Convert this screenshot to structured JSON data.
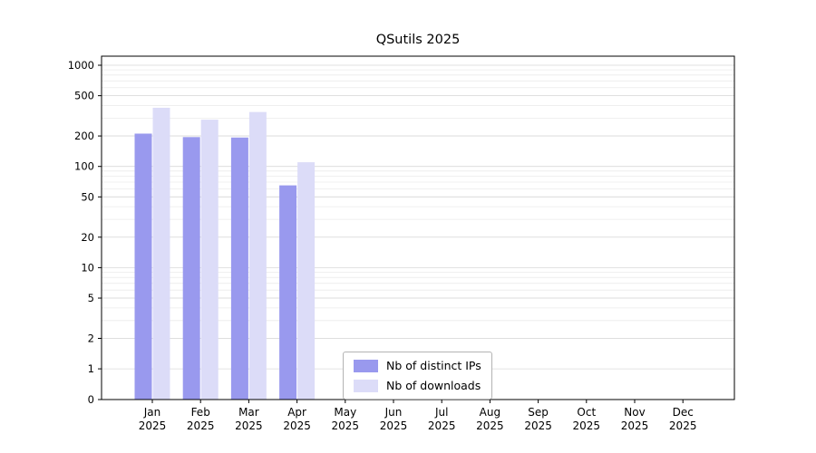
{
  "chart_data": {
    "type": "bar",
    "title": "QSutils 2025",
    "categories": [
      "Jan",
      "Feb",
      "Mar",
      "Apr",
      "May",
      "Jun",
      "Jul",
      "Aug",
      "Sep",
      "Oct",
      "Nov",
      "Dec"
    ],
    "year": "2025",
    "series": [
      {
        "name": "Nb of distinct IPs",
        "color": "#9999ee",
        "values": [
          211,
          195,
          193,
          65,
          0,
          0,
          0,
          0,
          0,
          0,
          0,
          0
        ]
      },
      {
        "name": "Nb of downloads",
        "color": "#dcdcf8",
        "values": [
          380,
          290,
          345,
          110,
          0,
          0,
          0,
          0,
          0,
          0,
          0,
          0
        ]
      }
    ],
    "yscale": "symlog",
    "yticks": [
      0,
      1,
      2,
      5,
      10,
      20,
      50,
      100,
      200,
      500,
      1000
    ],
    "ylim": [
      0,
      1200
    ],
    "grid": true,
    "legend_position": "lower center"
  }
}
